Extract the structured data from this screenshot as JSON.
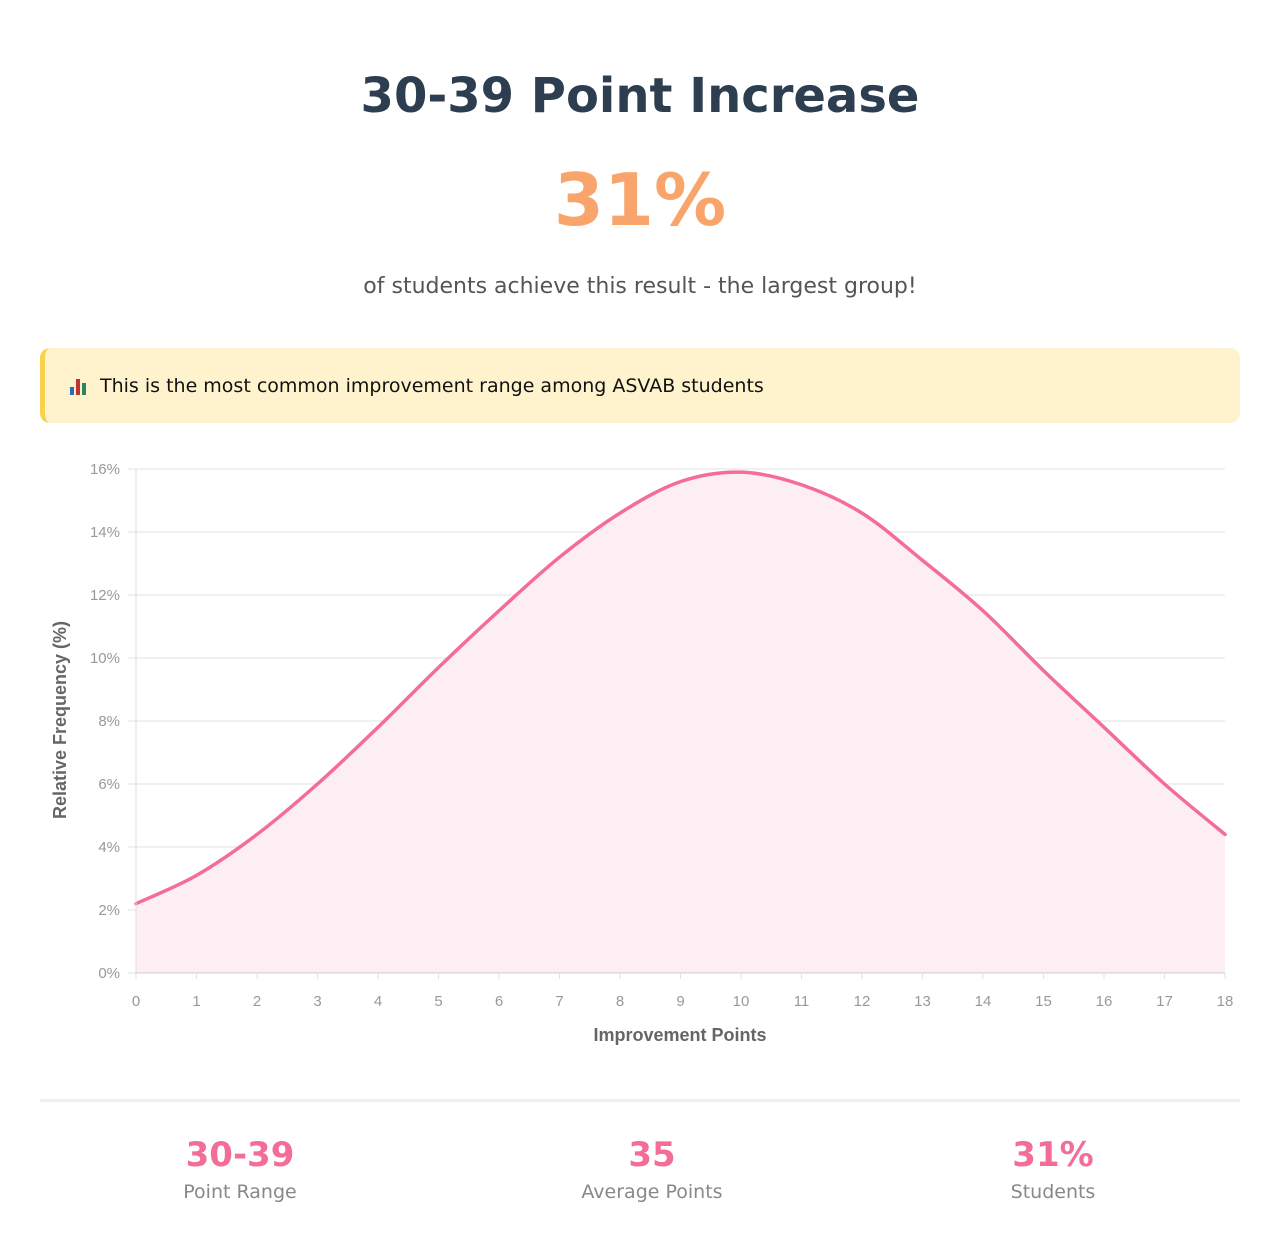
{
  "header": {
    "title": "30-39 Point Increase",
    "big_value": "31%",
    "subtitle": "of students achieve this result - the largest group!"
  },
  "callout": {
    "icon": "bar-chart-icon",
    "text": "This is the most common improvement range among ASVAB students",
    "background": "#fff3cd",
    "border_color": "#f7d24a"
  },
  "chart_data": {
    "type": "area",
    "xlabel": "Improvement Points",
    "ylabel": "Relative Frequency (%)",
    "x": [
      0,
      1,
      2,
      3,
      4,
      5,
      6,
      7,
      8,
      9,
      10,
      11,
      12,
      13,
      14,
      15,
      16,
      17,
      18
    ],
    "values": [
      2.2,
      3.1,
      4.4,
      6.0,
      7.8,
      9.7,
      11.5,
      13.2,
      14.6,
      15.6,
      15.9,
      15.5,
      14.6,
      13.1,
      11.5,
      9.6,
      7.8,
      6.0,
      4.4
    ],
    "xlim": [
      0,
      18
    ],
    "ylim": [
      0,
      16
    ],
    "y_ticks": [
      0,
      2,
      4,
      6,
      8,
      10,
      12,
      14,
      16
    ],
    "y_tick_suffix": "%",
    "grid": true,
    "legend": "none",
    "line_color": "#f36d97",
    "fill_color": "#fdeef3"
  },
  "stats": [
    {
      "value": "30-39",
      "label": "Point Range"
    },
    {
      "value": "35",
      "label": "Average Points"
    },
    {
      "value": "31%",
      "label": "Students"
    }
  ],
  "colors": {
    "title": "#2c3e50",
    "accent_orange": "#f9a46a",
    "accent_pink": "#f36d97"
  }
}
